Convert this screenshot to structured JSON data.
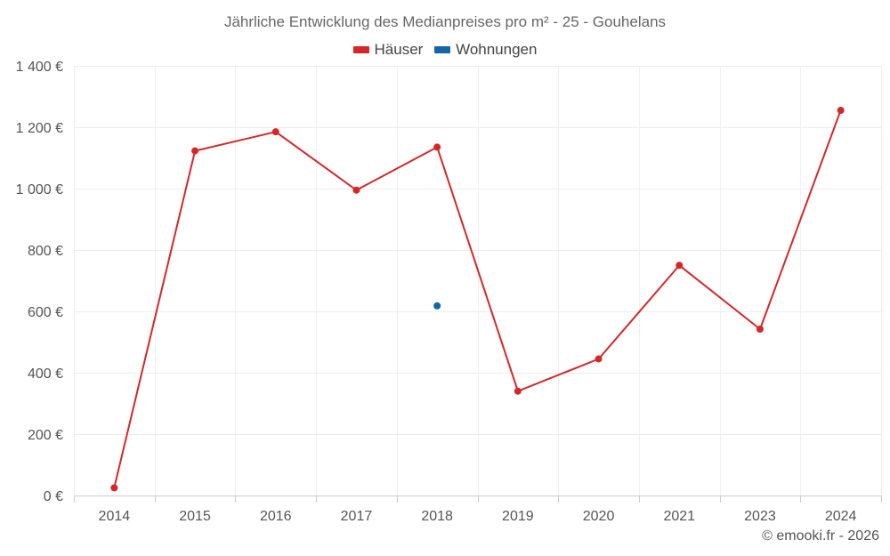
{
  "chart_data": {
    "type": "line",
    "title": "Jährliche Entwicklung des Medianpreises pro m² - 25 - Gouhelans",
    "categories": [
      "2014",
      "2015",
      "2016",
      "2017",
      "2018",
      "2019",
      "2020",
      "2021",
      "2023",
      "2024"
    ],
    "series": [
      {
        "name": "Häuser",
        "color": "#d62728",
        "values": [
          25,
          1123,
          1185,
          995,
          1135,
          340,
          445,
          750,
          542,
          1255
        ]
      },
      {
        "name": "Wohnungen",
        "color": "#1565a8",
        "values": [
          null,
          null,
          null,
          null,
          618,
          null,
          null,
          null,
          null,
          null
        ]
      }
    ],
    "yticks": [
      0,
      200,
      400,
      600,
      800,
      1000,
      1200,
      1400
    ],
    "ytick_labels": [
      "0 €",
      "200 €",
      "400 €",
      "600 €",
      "800 €",
      "1 000 €",
      "1 200 €",
      "1 400 €"
    ],
    "ylim": [
      0,
      1400
    ],
    "grid": true,
    "legend_position": "top"
  },
  "credit": "© emooki.fr - 2026"
}
